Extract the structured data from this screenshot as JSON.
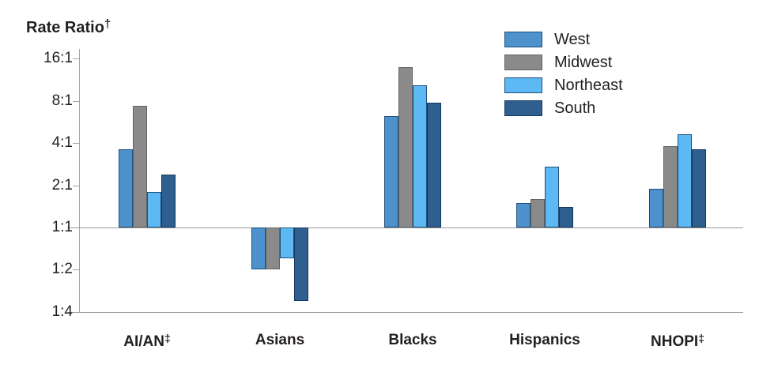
{
  "title": {
    "text": "Rate Ratio",
    "superscript": "†"
  },
  "y_axis": {
    "ticks": [
      {
        "label": "16:1",
        "value": 16,
        "line": "tick"
      },
      {
        "label": "8:1",
        "value": 8,
        "line": "tick"
      },
      {
        "label": "4:1",
        "value": 4,
        "line": "tick"
      },
      {
        "label": "2:1",
        "value": 2,
        "line": "tick"
      },
      {
        "label": "1:1",
        "value": 1,
        "line": "full"
      },
      {
        "label": "1:2",
        "value": 0.5,
        "line": "tick"
      },
      {
        "label": "1:4",
        "value": 0.25,
        "line": "full"
      }
    ]
  },
  "legend": {
    "position": "top-right",
    "items": [
      "West",
      "Midwest",
      "Northeast",
      "South"
    ]
  },
  "chart_data": {
    "type": "bar",
    "scale": "log2",
    "baseline": "1:1",
    "ylim": [
      0.25,
      16
    ],
    "grid": "baseline-and-bottom-only",
    "categories": [
      "AI/AN",
      "Asians",
      "Blacks",
      "Hispanics",
      "NHOPI"
    ],
    "category_superscripts": [
      "‡",
      "",
      "",
      "",
      "‡"
    ],
    "series": [
      {
        "name": "West",
        "color": "#4d92cd",
        "border": "#1f4e79",
        "values": [
          3.6,
          0.5,
          6.2,
          1.5,
          1.9
        ]
      },
      {
        "name": "Midwest",
        "color": "#8a8a8a",
        "border": "#636363",
        "values": [
          7.4,
          0.5,
          13.9,
          1.6,
          3.8
        ]
      },
      {
        "name": "Northeast",
        "color": "#5db9f4",
        "border": "#1f4e79",
        "values": [
          1.8,
          0.6,
          10.4,
          2.7,
          4.6
        ]
      },
      {
        "name": "South",
        "color": "#2e5f8f",
        "border": "#17375e",
        "values": [
          2.4,
          0.3,
          7.8,
          1.4,
          3.6
        ]
      }
    ]
  }
}
